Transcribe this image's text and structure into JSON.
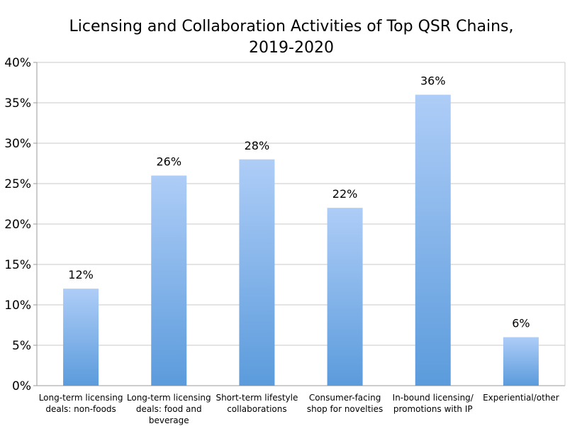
{
  "chart_data": {
    "type": "bar",
    "title_lines": [
      "Licensing and Collaboration Activities of Top QSR Chains,",
      "2019-2020"
    ],
    "categories": [
      [
        "Long-term licensing",
        "deals: non-foods"
      ],
      [
        "Long-term licensing",
        "deals: food and",
        "beverage"
      ],
      [
        "Short-term lifestyle",
        "collaborations"
      ],
      [
        "Consumer-facing",
        "shop for novelties"
      ],
      [
        "In-bound licensing/",
        "promotions with IP"
      ],
      [
        "Experiential/other"
      ]
    ],
    "values": [
      12,
      26,
      28,
      22,
      36,
      6
    ],
    "data_labels": [
      "12%",
      "26%",
      "28%",
      "22%",
      "36%",
      "6%"
    ],
    "yticks": [
      "0%",
      "5%",
      "10%",
      "15%",
      "20%",
      "25%",
      "30%",
      "35%",
      "40%"
    ],
    "ylim": [
      0,
      40
    ],
    "grid": true,
    "legend": "none",
    "colors": {
      "bar_top": "#aecdf7",
      "bar_bottom": "#5b9bdc",
      "grid": "#c8c8c8"
    }
  }
}
